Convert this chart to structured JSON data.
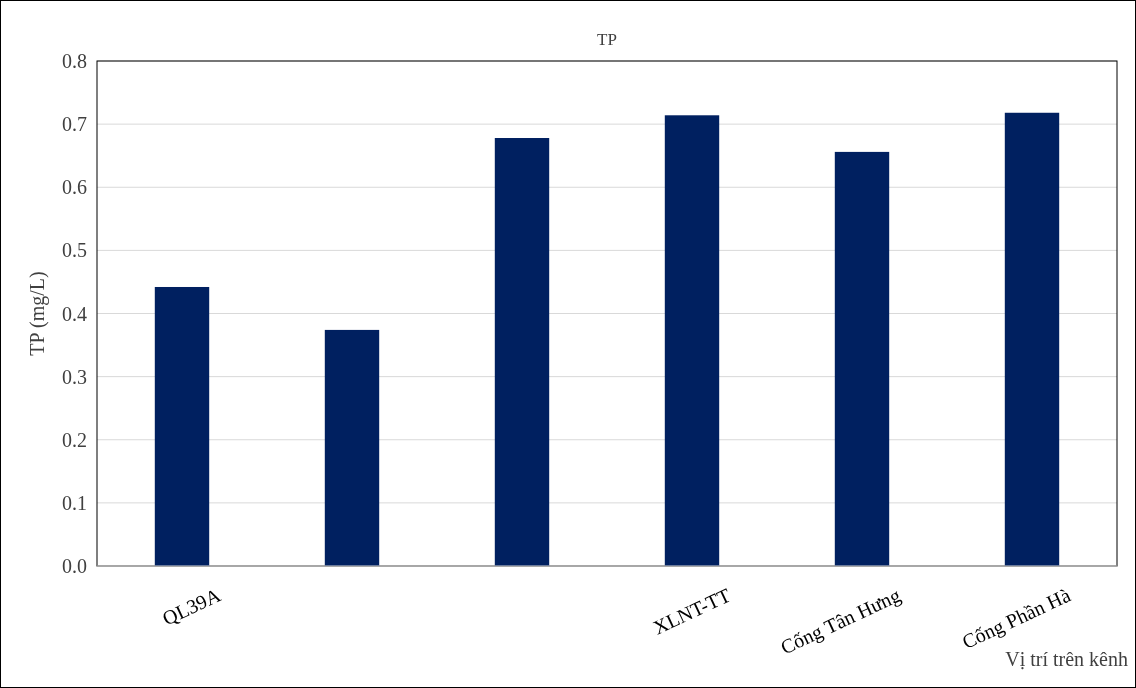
{
  "chart_data": {
    "type": "bar",
    "title": "TP",
    "xlabel": "Vị trí trên kênh",
    "ylabel": "TP (mg/L)",
    "categories": [
      "QL39A",
      null,
      null,
      "XLNT-TT",
      "Cống Tân Hưng",
      "Cống Phần Hà"
    ],
    "values": [
      0.442,
      0.374,
      0.678,
      0.714,
      0.656,
      0.718
    ],
    "color": "#002060",
    "ylim": [
      0,
      0.8
    ],
    "yticks": [
      {
        "value": 0,
        "label": "0.0"
      },
      0.1,
      0.2,
      0.3,
      0.4,
      0.5,
      0.6,
      0.7,
      0.8
    ],
    "grid": "y"
  }
}
